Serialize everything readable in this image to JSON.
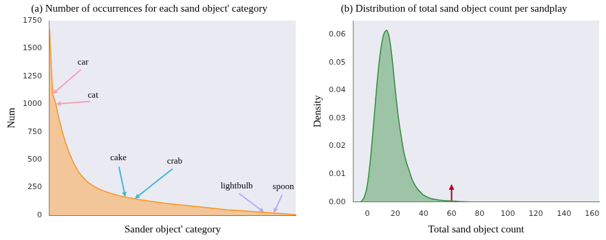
{
  "chart_data": [
    {
      "type": "area",
      "title": "(a) Number of occurrences for each sand object' category",
      "x_label": "Sander object' category",
      "y_label": "Num",
      "categories": [
        null,
        null,
        null,
        null,
        null,
        null,
        null,
        null,
        null,
        null,
        null,
        null,
        null,
        null,
        null,
        null,
        null,
        null,
        null,
        null,
        null,
        null,
        null,
        null,
        null,
        null,
        null,
        null,
        null,
        null,
        null,
        null,
        null,
        null,
        null,
        null,
        null,
        null,
        null,
        null,
        null,
        null,
        null,
        null,
        null,
        null,
        null,
        null,
        null,
        null,
        null,
        null,
        null,
        null,
        null,
        null,
        null,
        null,
        null,
        null,
        null,
        null,
        null,
        null,
        null,
        null,
        null,
        null,
        null,
        null,
        null,
        null,
        null,
        null,
        null,
        null,
        null,
        null,
        null
      ],
      "values": [
        1680,
        1090,
        1000,
        870,
        760,
        660,
        580,
        510,
        450,
        400,
        360,
        330,
        300,
        280,
        262,
        246,
        232,
        220,
        210,
        200,
        192,
        184,
        177,
        170,
        164,
        158,
        153,
        148,
        143,
        138,
        134,
        130,
        126,
        122,
        118,
        114,
        110,
        107,
        104,
        101,
        98,
        95,
        92,
        89,
        86,
        83,
        80,
        77,
        74,
        71,
        68,
        65,
        62,
        59,
        56,
        53,
        50,
        48,
        46,
        44,
        42,
        40,
        38,
        36,
        34,
        32,
        30,
        28,
        26,
        24,
        22,
        20,
        18,
        16,
        14,
        12,
        10,
        7,
        4
      ],
      "color": "#ff9214",
      "ylim": [
        0,
        1750
      ],
      "yticks": [
        0,
        250,
        500,
        750,
        1000,
        1250,
        1500,
        1750
      ],
      "grid": false,
      "tick_labels": "y",
      "annotations": [
        {
          "text": "car",
          "x": 1,
          "color": "#f4a3b8"
        },
        {
          "text": "cat",
          "x": 2,
          "color": "#f4a3b8"
        },
        {
          "text": "cake",
          "x": 24,
          "color": "#3fb8d8"
        },
        {
          "text": "crab",
          "x": 27,
          "color": "#3fb8d8"
        },
        {
          "text": "lightbulb",
          "x": 68,
          "color": "#b3aef0"
        },
        {
          "text": "spoon",
          "x": 71,
          "color": "#b3aef0"
        }
      ]
    },
    {
      "type": "area",
      "title": "(b) Distribution of total sand object count per sandplay",
      "x_label": "Total sand object count",
      "y_label": "Density",
      "x": [
        -10,
        -5,
        -2,
        0,
        2,
        4,
        6,
        8,
        10,
        12,
        14,
        16,
        18,
        20,
        22,
        24,
        26,
        28,
        30,
        32,
        34,
        36,
        38,
        40,
        45,
        50,
        55,
        60,
        65,
        70,
        75,
        165
      ],
      "values": [
        0,
        0,
        0.002,
        0.006,
        0.014,
        0.025,
        0.037,
        0.048,
        0.056,
        0.0605,
        0.0615,
        0.058,
        0.05,
        0.04,
        0.031,
        0.024,
        0.018,
        0.014,
        0.011,
        0.008,
        0.006,
        0.0045,
        0.0035,
        0.0025,
        0.0013,
        0.0008,
        0.0005,
        0.0004,
        0.0002,
        0.0001,
        0,
        0
      ],
      "color": "#2e8b3a",
      "xlim": [
        -10,
        165
      ],
      "xticks": [
        0,
        20,
        40,
        60,
        80,
        100,
        120,
        140,
        160
      ],
      "ylim": [
        0,
        0.065
      ],
      "yticks": [
        {
          "value": 0,
          "label": "0.00"
        },
        {
          "value": 0.01,
          "label": "0.01"
        },
        {
          "value": 0.02,
          "label": "0.02"
        },
        {
          "value": 0.03,
          "label": "0.03"
        },
        {
          "value": 0.04,
          "label": "0.04"
        },
        {
          "value": 0.05,
          "label": "0.05"
        },
        {
          "value": 0.06,
          "label": "0.06"
        }
      ],
      "grid": false,
      "annotations": [
        {
          "x": 60,
          "color": "#b0001e"
        }
      ]
    }
  ]
}
